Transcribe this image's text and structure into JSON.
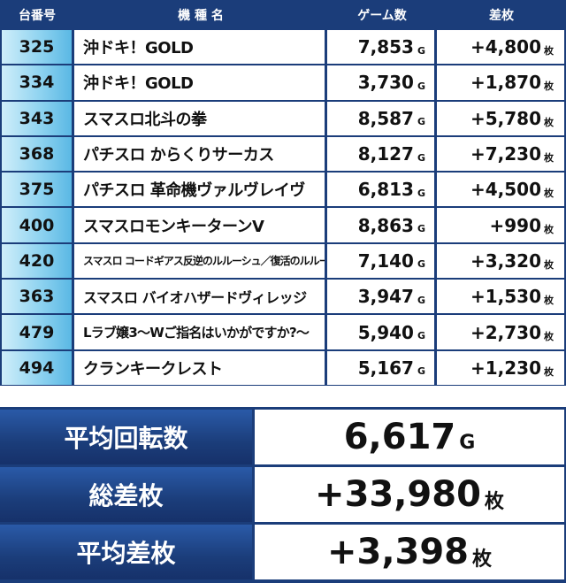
{
  "headers": {
    "id": "台番号",
    "name": "機 種 名",
    "games": "ゲーム数",
    "diff": "差枚"
  },
  "units": {
    "game": "G",
    "coin": "枚"
  },
  "rows": [
    {
      "id": "325",
      "name": "沖ドキ！GOLD",
      "games": "7,853",
      "diff": "+4,800"
    },
    {
      "id": "334",
      "name": "沖ドキ！GOLD",
      "games": "3,730",
      "diff": "+1,870"
    },
    {
      "id": "343",
      "name": "スマスロ北斗の拳",
      "games": "8,587",
      "diff": "+5,780"
    },
    {
      "id": "368",
      "name": "パチスロ からくりサーカス",
      "games": "8,127",
      "diff": "+7,230"
    },
    {
      "id": "375",
      "name": "パチスロ 革命機ヴァルヴレイヴ",
      "games": "6,813",
      "diff": "+4,500"
    },
    {
      "id": "400",
      "name": "スマスロモンキーターンV",
      "games": "8,863",
      "diff": "+990"
    },
    {
      "id": "420",
      "name": "スマスロ コードギアス反逆のルルーシュ／復活のルルーシュ",
      "games": "7,140",
      "diff": "+3,320"
    },
    {
      "id": "363",
      "name": "スマスロ バイオハザードヴィレッジ",
      "games": "3,947",
      "diff": "+1,530"
    },
    {
      "id": "479",
      "name": "Lラブ嬢3～Wご指名はいかがですか?～",
      "games": "5,940",
      "diff": "+2,730"
    },
    {
      "id": "494",
      "name": "クランキークレスト",
      "games": "5,167",
      "diff": "+1,230"
    }
  ],
  "summary": [
    {
      "label": "平均回転数",
      "value": "6,617",
      "unit": "G"
    },
    {
      "label": "総差枚",
      "value": "+33,980",
      "unit": "枚"
    },
    {
      "label": "平均差枚",
      "value": "+3,398",
      "unit": "枚"
    }
  ]
}
